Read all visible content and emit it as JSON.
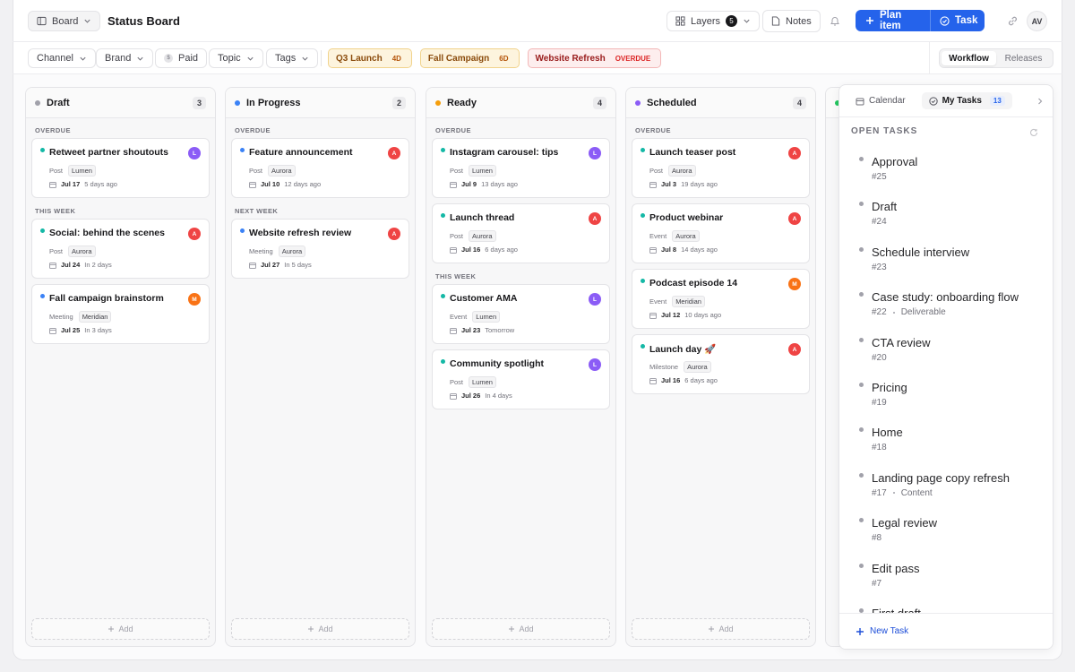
{
  "header": {
    "view": "Board",
    "title": "Status Board",
    "layers": "Layers",
    "layers_count": 5,
    "notes": "Notes",
    "plan_item": "Plan item",
    "task": "Task",
    "avatar": "AV"
  },
  "filters": {
    "channel": "Channel",
    "brand": "Brand",
    "paid_icon": "$",
    "paid": "Paid",
    "topic": "Topic",
    "tags": "Tags"
  },
  "campaigns": [
    {
      "name": "Q3 Launch",
      "badge": "4D"
    },
    {
      "name": "Fall Campaign",
      "badge": "6D"
    },
    {
      "name": "Website Refresh",
      "badge": "OVERDUE"
    }
  ],
  "tabs": {
    "workflow": "Workflow",
    "releases": "Releases"
  },
  "board": {
    "add": "Add",
    "columns": [
      {
        "name": "Draft",
        "count": 3,
        "color": "#a1a1aa",
        "groups": [
          {
            "label": "OVERDUE",
            "cards": [
              {
                "title": "Retweet partner shoutouts",
                "dot": "#14b8a6",
                "avatar": "L",
                "type": "Post",
                "owner": "Lumen",
                "date": "Jul 17",
                "relative": "5 days ago"
              }
            ]
          },
          {
            "label": "THIS WEEK",
            "cards": [
              {
                "title": "Social: behind the scenes",
                "dot": "#14b8a6",
                "avatar": "A",
                "type": "Post",
                "owner": "Aurora",
                "date": "Jul 24",
                "relative": "In 2 days"
              },
              {
                "title": "Fall campaign brainstorm",
                "dot": "#3b82f6",
                "avatar": "M",
                "type": "Meeting",
                "owner": "Meridian",
                "date": "Jul 25",
                "relative": "In 3 days"
              }
            ]
          }
        ]
      },
      {
        "name": "In Progress",
        "count": 2,
        "color": "#3b82f6",
        "groups": [
          {
            "label": "OVERDUE",
            "cards": [
              {
                "title": "Feature announcement",
                "dot": "#3b82f6",
                "avatar": "A",
                "type": "Post",
                "owner": "Aurora",
                "date": "Jul 10",
                "relative": "12 days ago"
              }
            ]
          },
          {
            "label": "NEXT WEEK",
            "cards": [
              {
                "title": "Website refresh review",
                "dot": "#3b82f6",
                "avatar": "A",
                "type": "Meeting",
                "owner": "Aurora",
                "date": "Jul 27",
                "relative": "In 5 days"
              }
            ]
          }
        ]
      },
      {
        "name": "Ready",
        "count": 4,
        "color": "#f59e0b",
        "groups": [
          {
            "label": "OVERDUE",
            "cards": [
              {
                "title": "Instagram carousel: tips",
                "dot": "#14b8a6",
                "avatar": "L",
                "type": "Post",
                "owner": "Lumen",
                "date": "Jul 9",
                "relative": "13 days ago"
              },
              {
                "title": "Launch thread",
                "dot": "#14b8a6",
                "avatar": "A",
                "type": "Post",
                "owner": "Aurora",
                "date": "Jul 16",
                "relative": "6 days ago"
              }
            ]
          },
          {
            "label": "THIS WEEK",
            "cards": [
              {
                "title": "Customer AMA",
                "dot": "#14b8a6",
                "avatar": "L",
                "type": "Event",
                "owner": "Lumen",
                "date": "Jul 23",
                "relative": "Tomorrow"
              },
              {
                "title": "Community spotlight",
                "dot": "#14b8a6",
                "avatar": "L",
                "type": "Post",
                "owner": "Lumen",
                "date": "Jul 26",
                "relative": "In 4 days"
              }
            ]
          }
        ]
      },
      {
        "name": "Scheduled",
        "count": 4,
        "color": "#8b5cf6",
        "groups": [
          {
            "label": "OVERDUE",
            "cards": [
              {
                "title": "Launch teaser post",
                "dot": "#14b8a6",
                "avatar": "A",
                "type": "Post",
                "owner": "Aurora",
                "date": "Jul 3",
                "relative": "19 days ago"
              },
              {
                "title": "Product webinar",
                "dot": "#14b8a6",
                "avatar": "A",
                "type": "Event",
                "owner": "Aurora",
                "date": "Jul 8",
                "relative": "14 days ago"
              },
              {
                "title": "Podcast episode 14",
                "dot": "#14b8a6",
                "avatar": "M",
                "type": "Event",
                "owner": "Meridian",
                "date": "Jul 12",
                "relative": "10 days ago"
              },
              {
                "title": "Launch day 🚀",
                "dot": "#14b8a6",
                "avatar": "A",
                "type": "Milestone",
                "owner": "Aurora",
                "date": "Jul 16",
                "relative": "6 days ago"
              }
            ]
          }
        ]
      }
    ]
  },
  "panel": {
    "calendar": "Calendar",
    "my_tasks": "My Tasks",
    "count": 13,
    "section": "OPEN TASKS",
    "new_task": "New Task",
    "tasks": [
      {
        "title": "Approval",
        "id": "#25"
      },
      {
        "title": "Draft",
        "id": "#24"
      },
      {
        "title": "Schedule interview",
        "id": "#23"
      },
      {
        "title": "Case study: onboarding flow",
        "id": "#22",
        "tag": "Deliverable"
      },
      {
        "title": "CTA review",
        "id": "#20"
      },
      {
        "title": "Pricing",
        "id": "#19"
      },
      {
        "title": "Home",
        "id": "#18"
      },
      {
        "title": "Landing page copy refresh",
        "id": "#17",
        "tag": "Content"
      },
      {
        "title": "Legal review",
        "id": "#8"
      },
      {
        "title": "Edit pass",
        "id": "#7"
      },
      {
        "title": "First draft"
      }
    ]
  }
}
